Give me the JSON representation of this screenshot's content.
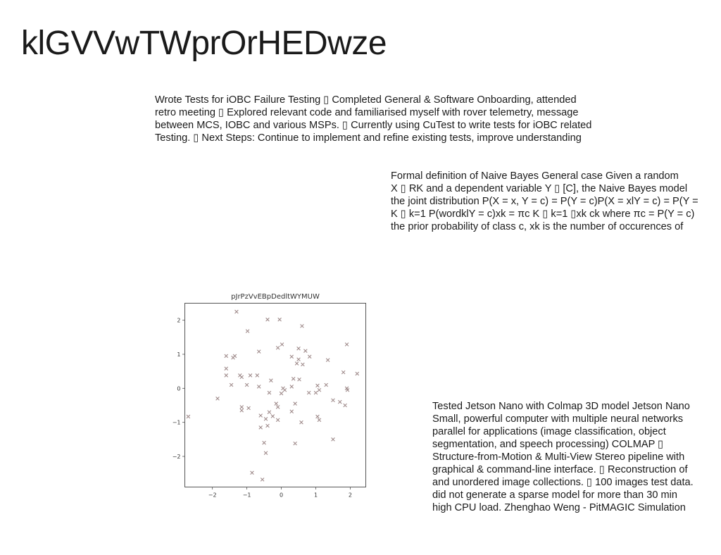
{
  "slide": {
    "title": "klGVVwTWprOrHEDwze",
    "text_blocks": [
      {
        "lines": [
          "Wrote Tests for iOBC Failure Testing ▯ Completed General & Software Onboarding, attended",
          "retro meeting ▯ Explored relevant code and familiarised myself with rover telemetry, message",
          "between MCS, IOBC and various MSPs. ▯ Currently using CuTest to write tests for iOBC related",
          "Testing. ▯ Next Steps: Continue to implement and refine existing tests, improve understanding"
        ]
      },
      {
        "lines": [
          "Formal definition of Naive Bayes General case Given a random",
          "X ▯ RK and a dependent variable Y ▯ [C], the Naive Bayes model",
          "the joint distribution P(X = x, Y = c) = P(Y = c)P(X = xlY = c) = P(Y =",
          "K ▯ k=1 P(wordklY = c)xk = πc K ▯ k=1 ▯xk ck where πc = P(Y = c)",
          "the prior probability of class c, xk is the number of occurences of"
        ]
      },
      {
        "lines": [
          "Tested Jetson Nano with Colmap 3D model Jetson Nano",
          "Small, powerful computer with multiple neural networks",
          "parallel for applications (image classification, object",
          "segmentation, and speech processing) COLMAP ▯",
          "Structure-from-Motion & Multi-View Stereo pipeline with",
          "graphical & command-line interface. ▯ Reconstruction of",
          "and unordered image collections. ▯ 100 images test data.",
          "did not generate a sparse model for more than 30 min",
          "high CPU load. Zhenghao Weng - PitMAGIC Simulation"
        ]
      }
    ]
  },
  "chart_data": {
    "type": "scatter",
    "title": "pJrPzVvEBpDedltWYMUW",
    "xlabel": "",
    "ylabel": "",
    "xlim": [
      -2.8,
      2.45
    ],
    "ylim": [
      -2.9,
      2.5
    ],
    "xticks": [
      "−2",
      "−1",
      "0",
      "1",
      "2"
    ],
    "yticks": [
      "2",
      "1",
      "0",
      "−1",
      "−2"
    ],
    "marker": "x",
    "color": "#a08c8c",
    "grid": false,
    "points": [
      [
        -1.3,
        2.25
      ],
      [
        -0.4,
        2.02
      ],
      [
        -0.05,
        2.02
      ],
      [
        0.6,
        1.83
      ],
      [
        -0.98,
        1.68
      ],
      [
        1.9,
        1.29
      ],
      [
        0.02,
        1.29
      ],
      [
        -0.1,
        1.19
      ],
      [
        0.5,
        1.17
      ],
      [
        0.7,
        1.1
      ],
      [
        -0.65,
        1.08
      ],
      [
        0.3,
        0.93
      ],
      [
        0.82,
        0.93
      ],
      [
        -1.6,
        0.95
      ],
      [
        -1.35,
        0.95
      ],
      [
        -1.4,
        0.9
      ],
      [
        0.5,
        0.85
      ],
      [
        1.35,
        0.83
      ],
      [
        0.45,
        0.73
      ],
      [
        0.62,
        0.7
      ],
      [
        -1.6,
        0.58
      ],
      [
        1.8,
        0.47
      ],
      [
        2.2,
        0.43
      ],
      [
        -1.6,
        0.38
      ],
      [
        -1.2,
        0.38
      ],
      [
        -0.9,
        0.38
      ],
      [
        -0.7,
        0.38
      ],
      [
        -1.15,
        0.33
      ],
      [
        0.35,
        0.28
      ],
      [
        0.52,
        0.26
      ],
      [
        -0.3,
        0.23
      ],
      [
        -1.45,
        0.1
      ],
      [
        -1.0,
        0.1
      ],
      [
        -0.65,
        0.05
      ],
      [
        0.3,
        0.05
      ],
      [
        1.3,
        0.1
      ],
      [
        1.05,
        0.08
      ],
      [
        0.05,
        0.0
      ],
      [
        0.1,
        -0.05
      ],
      [
        1.9,
        0.0
      ],
      [
        1.92,
        -0.05
      ],
      [
        1.1,
        -0.05
      ],
      [
        -0.35,
        -0.13
      ],
      [
        0.0,
        -0.15
      ],
      [
        0.8,
        -0.13
      ],
      [
        1.0,
        -0.13
      ],
      [
        -1.85,
        -0.3
      ],
      [
        1.5,
        -0.35
      ],
      [
        1.7,
        -0.4
      ],
      [
        -0.15,
        -0.45
      ],
      [
        0.4,
        -0.45
      ],
      [
        1.85,
        -0.5
      ],
      [
        -1.15,
        -0.55
      ],
      [
        -0.95,
        -0.58
      ],
      [
        -1.15,
        -0.65
      ],
      [
        -0.1,
        -0.55
      ],
      [
        -0.35,
        -0.7
      ],
      [
        0.3,
        -0.68
      ],
      [
        -2.7,
        -0.83
      ],
      [
        -0.6,
        -0.8
      ],
      [
        -0.25,
        -0.82
      ],
      [
        -0.45,
        -0.9
      ],
      [
        1.05,
        -0.83
      ],
      [
        1.1,
        -0.93
      ],
      [
        -0.1,
        -0.93
      ],
      [
        0.58,
        -1.0
      ],
      [
        -0.4,
        -1.1
      ],
      [
        -0.6,
        -1.15
      ],
      [
        1.5,
        -1.5
      ],
      [
        -0.5,
        -1.6
      ],
      [
        0.4,
        -1.62
      ],
      [
        -0.45,
        -1.9
      ],
      [
        -0.85,
        -2.48
      ],
      [
        -0.55,
        -2.68
      ]
    ]
  }
}
